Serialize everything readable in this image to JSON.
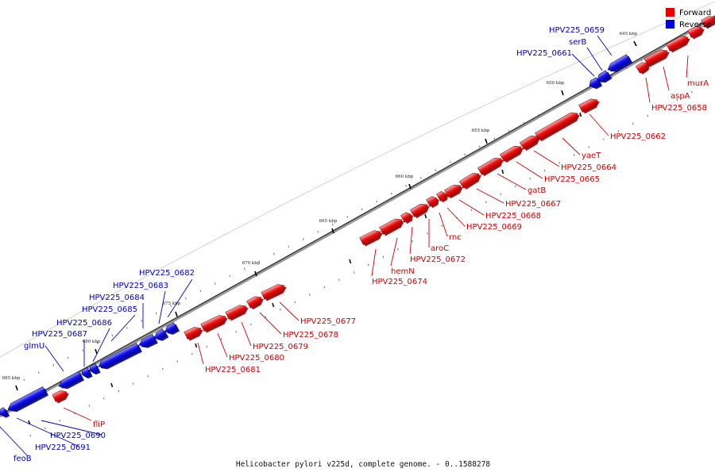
{
  "caption": "Helicobacter pylori v225d, complete genome. - 0..1588278",
  "legend": {
    "forward": "Forward",
    "reverse": "Reverse"
  },
  "colors": {
    "forward": "#e60000",
    "reverse": "#0000dd",
    "forward_label": "#cc0000",
    "reverse_label": "#0000bb"
  },
  "scale_labels": [
    "645 kbp",
    "650 kbp",
    "655 kbp",
    "660 kbp",
    "665 kbp",
    "670 kbp",
    "675 kbp",
    "680 kbp",
    "685 kbp"
  ],
  "gene_labels": {
    "forward": [
      "murA",
      "aspA",
      "HPV225_0658",
      "HPV225_0662",
      "yaeT",
      "HPV225_0664",
      "HPV225_0665",
      "gatB",
      "HPV225_0667",
      "HPV225_0668",
      "HPV225_0669",
      "rnc",
      "aroC",
      "HPV225_0672",
      "hemN",
      "HPV225_0674",
      "HPV225_0677",
      "HPV225_0678",
      "HPV225_0679",
      "HPV225_0680",
      "HPV225_0681",
      "fliP"
    ],
    "reverse": [
      "HPV225_0659",
      "serB",
      "HPV225_0661",
      "HPV225_0682",
      "HPV225_0683",
      "HPV225_0684",
      "HPV225_0685",
      "HPV225_0686",
      "HPV225_0687",
      "glmU",
      "HPV225_0690",
      "HPV225_0691",
      "feoB"
    ]
  }
}
